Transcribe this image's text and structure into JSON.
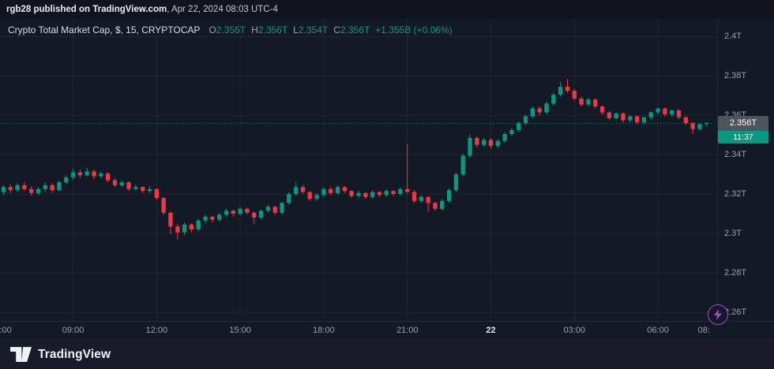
{
  "topbar": {
    "publisher": "rgb28 published on TradingView.com",
    "meta": ", Apr 22, 2024 08:03 UTC-4"
  },
  "header": {
    "title": "Crypto Total Market Cap, $, 15, CRYPTOCAP",
    "o_label": "O",
    "o": "2.355T",
    "h_label": "H",
    "h": "2.356T",
    "l_label": "L",
    "l": "2.354T",
    "c_label": "C",
    "c": "2.356T",
    "change": "+1.355B (+0.06%)"
  },
  "last_price": {
    "value": 2.356,
    "label": "2.356T",
    "countdown": "11:37"
  },
  "footer": {
    "brand": "TradingView"
  },
  "colors": {
    "bg": "#141a25",
    "topbar_bg": "#10141d",
    "footer_bg": "#171c28",
    "grid": "rgba(255,255,255,0.055)",
    "axis_text": "#9aa0ac",
    "up": "#089981",
    "down": "#f23645",
    "price_line": "#089981",
    "badge_bg": "#4e545e",
    "badge_countdown_bg": "#089981",
    "accent_purple": "#a347d1"
  },
  "chart_data": {
    "type": "candlestick",
    "title": "Crypto Total Market Cap, $, 15, CRYPTOCAP",
    "interval_minutes": 15,
    "start_time": "Apr 21 06:30",
    "end_time": "Apr 22 07:45",
    "ylim": [
      2.2555,
      2.409
    ],
    "grid": true,
    "y_ticks": [
      {
        "value": 2.4,
        "label": "2.4T"
      },
      {
        "value": 2.38,
        "label": "2.38T"
      },
      {
        "value": 2.36,
        "label": "2.36T"
      },
      {
        "value": 2.34,
        "label": "2.34T"
      },
      {
        "value": 2.32,
        "label": "2.32T"
      },
      {
        "value": 2.3,
        "label": "2.3T"
      },
      {
        "value": 2.28,
        "label": "2.28T"
      },
      {
        "value": 2.26,
        "label": "2.26T"
      }
    ],
    "x_ticks": [
      {
        "label": ":00",
        "i": 0.3,
        "grid": false,
        "emphasis": false
      },
      {
        "label": "09:00",
        "i": 10,
        "grid": true,
        "emphasis": false
      },
      {
        "label": "12:00",
        "i": 22,
        "grid": true,
        "emphasis": false
      },
      {
        "label": "15:00",
        "i": 34,
        "grid": true,
        "emphasis": false
      },
      {
        "label": "18:00",
        "i": 46,
        "grid": true,
        "emphasis": false
      },
      {
        "label": "21:00",
        "i": 58,
        "grid": true,
        "emphasis": false
      },
      {
        "label": "22",
        "i": 70,
        "grid": true,
        "emphasis": true
      },
      {
        "label": "03:00",
        "i": 82,
        "grid": true,
        "emphasis": false
      },
      {
        "label": "06:00",
        "i": 94,
        "grid": true,
        "emphasis": false
      },
      {
        "label": "08:",
        "i": 100.6,
        "grid": false,
        "emphasis": false
      }
    ],
    "last_close": 2.356,
    "candles": [
      [
        2.321,
        2.3245,
        2.3195,
        2.3235
      ],
      [
        2.3235,
        2.325,
        2.3205,
        2.322
      ],
      [
        2.322,
        2.3255,
        2.321,
        2.3245
      ],
      [
        2.3245,
        2.326,
        2.3215,
        2.3225
      ],
      [
        2.3225,
        2.324,
        2.319,
        2.3205
      ],
      [
        2.3205,
        2.3235,
        2.3195,
        2.3225
      ],
      [
        2.3225,
        2.326,
        2.321,
        2.3245
      ],
      [
        2.3245,
        2.3255,
        2.3205,
        2.322
      ],
      [
        2.322,
        2.327,
        2.3215,
        2.326
      ],
      [
        2.326,
        2.3295,
        2.325,
        2.3285
      ],
      [
        2.3285,
        2.333,
        2.3275,
        2.331
      ],
      [
        2.331,
        2.3325,
        2.328,
        2.3295
      ],
      [
        2.3295,
        2.3335,
        2.329,
        2.3315
      ],
      [
        2.3315,
        2.3325,
        2.3275,
        2.329
      ],
      [
        2.329,
        2.3315,
        2.328,
        2.3305
      ],
      [
        2.3305,
        2.331,
        2.326,
        2.327
      ],
      [
        2.327,
        2.328,
        2.3235,
        2.3245
      ],
      [
        2.3245,
        2.327,
        2.3235,
        2.326
      ],
      [
        2.326,
        2.3265,
        2.3215,
        2.3225
      ],
      [
        2.3225,
        2.325,
        2.3215,
        2.3235
      ],
      [
        2.3235,
        2.324,
        2.3205,
        2.3215
      ],
      [
        2.3215,
        2.324,
        2.3205,
        2.3225
      ],
      [
        2.3225,
        2.323,
        2.317,
        2.318
      ],
      [
        2.318,
        2.3185,
        2.3095,
        2.3105
      ],
      [
        2.3105,
        2.311,
        2.2995,
        2.3035
      ],
      [
        2.3035,
        2.305,
        2.297,
        2.3005
      ],
      [
        2.3005,
        2.3055,
        2.299,
        2.3045
      ],
      [
        2.3045,
        2.305,
        2.3005,
        2.302
      ],
      [
        2.302,
        2.3075,
        2.301,
        2.3065
      ],
      [
        2.3065,
        2.3095,
        2.305,
        2.3085
      ],
      [
        2.3085,
        2.309,
        2.3055,
        2.307
      ],
      [
        2.307,
        2.3105,
        2.306,
        2.3095
      ],
      [
        2.3095,
        2.3125,
        2.3085,
        2.3115
      ],
      [
        2.3115,
        2.312,
        2.3085,
        2.31
      ],
      [
        2.31,
        2.3135,
        2.309,
        2.3125
      ],
      [
        2.3125,
        2.313,
        2.3095,
        2.3105
      ],
      [
        2.3105,
        2.311,
        2.3045,
        2.308
      ],
      [
        2.308,
        2.312,
        2.307,
        2.3115
      ],
      [
        2.3115,
        2.3145,
        2.3105,
        2.3135
      ],
      [
        2.3135,
        2.314,
        2.3095,
        2.3105
      ],
      [
        2.3105,
        2.316,
        2.3095,
        2.3155
      ],
      [
        2.3155,
        2.321,
        2.3145,
        2.32
      ],
      [
        2.32,
        2.326,
        2.319,
        2.3235
      ],
      [
        2.3235,
        2.3245,
        2.32,
        2.321
      ],
      [
        2.321,
        2.3215,
        2.3165,
        2.3175
      ],
      [
        2.3175,
        2.3205,
        2.3165,
        2.3195
      ],
      [
        2.3195,
        2.3235,
        2.3185,
        2.3225
      ],
      [
        2.3225,
        2.3235,
        2.3195,
        2.3205
      ],
      [
        2.3205,
        2.3245,
        2.3195,
        2.3235
      ],
      [
        2.3235,
        2.324,
        2.3205,
        2.3215
      ],
      [
        2.3215,
        2.322,
        2.318,
        2.319
      ],
      [
        2.319,
        2.3215,
        2.318,
        2.3205
      ],
      [
        2.3205,
        2.321,
        2.3175,
        2.3185
      ],
      [
        2.3185,
        2.322,
        2.3175,
        2.321
      ],
      [
        2.321,
        2.3215,
        2.3185,
        2.3195
      ],
      [
        2.3195,
        2.3225,
        2.3185,
        2.3215
      ],
      [
        2.3215,
        2.322,
        2.319,
        2.32
      ],
      [
        2.32,
        2.3235,
        2.319,
        2.3225
      ],
      [
        2.3225,
        2.3455,
        2.3205,
        2.321
      ],
      [
        2.321,
        2.322,
        2.3155,
        2.3165
      ],
      [
        2.3165,
        2.3195,
        2.3155,
        2.3185
      ],
      [
        2.3185,
        2.319,
        2.311,
        2.3155
      ],
      [
        2.3155,
        2.316,
        2.3115,
        2.3125
      ],
      [
        2.3125,
        2.3175,
        2.3115,
        2.3165
      ],
      [
        2.3165,
        2.323,
        2.3155,
        2.322
      ],
      [
        2.322,
        2.331,
        2.321,
        2.33
      ],
      [
        2.33,
        2.3405,
        2.329,
        2.3395
      ],
      [
        2.3395,
        2.3505,
        2.3385,
        2.3485
      ],
      [
        2.3485,
        2.3495,
        2.3435,
        2.345
      ],
      [
        2.345,
        2.3485,
        2.344,
        2.3475
      ],
      [
        2.3475,
        2.3485,
        2.343,
        2.3445
      ],
      [
        2.3445,
        2.348,
        2.3435,
        2.347
      ],
      [
        2.347,
        2.3515,
        2.346,
        2.3505
      ],
      [
        2.3505,
        2.3535,
        2.3495,
        2.3525
      ],
      [
        2.3525,
        2.357,
        2.3515,
        2.356
      ],
      [
        2.356,
        2.3605,
        2.355,
        2.3595
      ],
      [
        2.3595,
        2.3645,
        2.3585,
        2.3635
      ],
      [
        2.3635,
        2.3645,
        2.36,
        2.3615
      ],
      [
        2.3615,
        2.367,
        2.3605,
        2.366
      ],
      [
        2.366,
        2.3715,
        2.365,
        2.3705
      ],
      [
        2.3705,
        2.377,
        2.3695,
        2.3745
      ],
      [
        2.3745,
        2.3785,
        2.3715,
        2.3725
      ],
      [
        2.3725,
        2.3735,
        2.3675,
        2.3685
      ],
      [
        2.3685,
        2.3695,
        2.3645,
        2.3655
      ],
      [
        2.3655,
        2.369,
        2.3645,
        2.368
      ],
      [
        2.368,
        2.3685,
        2.3635,
        2.3645
      ],
      [
        2.3645,
        2.365,
        2.3605,
        2.3615
      ],
      [
        2.3615,
        2.362,
        2.3575,
        2.3585
      ],
      [
        2.3585,
        2.3615,
        2.3575,
        2.361
      ],
      [
        2.361,
        2.3615,
        2.3565,
        2.3575
      ],
      [
        2.3575,
        2.36,
        2.3565,
        2.3595
      ],
      [
        2.3595,
        2.36,
        2.3555,
        2.3565
      ],
      [
        2.3565,
        2.3595,
        2.3555,
        2.359
      ],
      [
        2.359,
        2.362,
        2.358,
        2.3615
      ],
      [
        2.3615,
        2.364,
        2.3605,
        2.3635
      ],
      [
        2.3635,
        2.364,
        2.3595,
        2.3605
      ],
      [
        2.3605,
        2.363,
        2.3595,
        2.3625
      ],
      [
        2.3625,
        2.363,
        2.358,
        2.359
      ],
      [
        2.359,
        2.3595,
        2.355,
        2.356
      ],
      [
        2.356,
        2.3565,
        2.3505,
        2.353
      ],
      [
        2.353,
        2.356,
        2.352,
        2.3555
      ],
      [
        2.3555,
        2.3565,
        2.354,
        2.356
      ]
    ]
  }
}
